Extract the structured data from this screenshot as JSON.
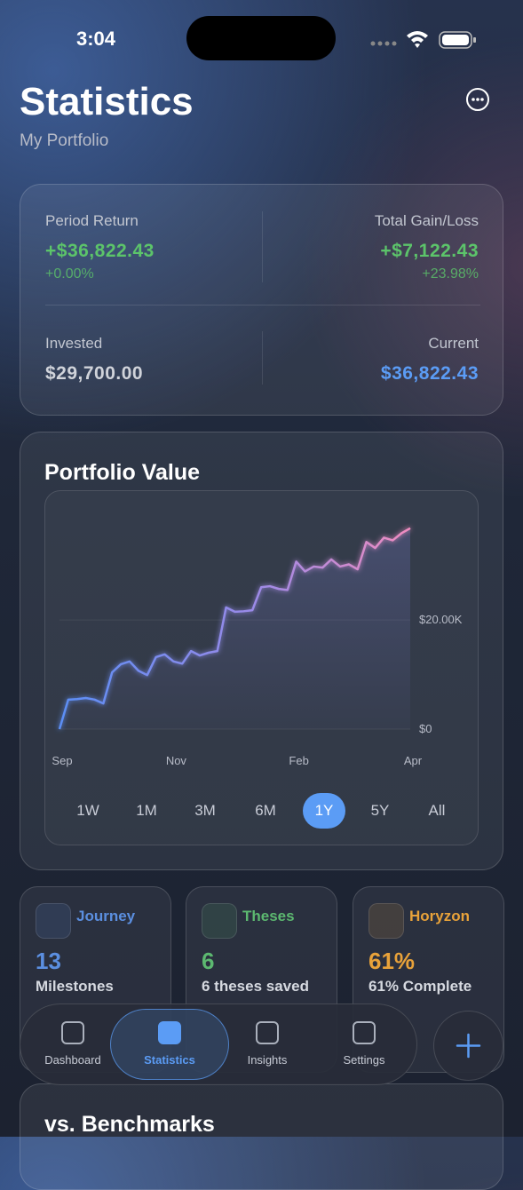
{
  "status_bar": {
    "time": "3:04"
  },
  "header": {
    "title": "Statistics",
    "subtitle": "My Portfolio"
  },
  "summary": {
    "period_return": {
      "label": "Period Return",
      "value": "+$36,822.43",
      "change": "+0.00%"
    },
    "total_gain_loss": {
      "label": "Total Gain/Loss",
      "value": "+$7,122.43",
      "change": "+23.98%"
    },
    "invested": {
      "label": "Invested",
      "value": "$29,700.00"
    },
    "current": {
      "label": "Current",
      "value": "$36,822.43"
    }
  },
  "portfolio_chart": {
    "type": "line",
    "title": "Portfolio Value",
    "x": [
      "Sep",
      null,
      null,
      null,
      null,
      null,
      null,
      null,
      null,
      null,
      null,
      null,
      null,
      "Nov",
      null,
      null,
      null,
      null,
      null,
      null,
      null,
      null,
      null,
      null,
      null,
      null,
      null,
      "Feb",
      null,
      null,
      null,
      null,
      null,
      null,
      null,
      null,
      null,
      null,
      null,
      null,
      "Apr"
    ],
    "values": [
      0,
      5400,
      5500,
      5700,
      5400,
      4700,
      10400,
      11900,
      12400,
      10700,
      9900,
      13200,
      13700,
      12400,
      12000,
      14300,
      13500,
      14000,
      14300,
      22300,
      21500,
      21600,
      21800,
      26000,
      26200,
      25700,
      25500,
      30700,
      28900,
      29800,
      29600,
      31100,
      29800,
      30200,
      29300,
      34300,
      33200,
      35100,
      34600,
      35900,
      36822
    ],
    "ylim": [
      0,
      42000
    ],
    "yticks": [
      {
        "value": 0,
        "label": "$0"
      },
      {
        "value": 20000,
        "label": "$20.00K"
      }
    ],
    "grid": true,
    "ranges": [
      "1W",
      "1M",
      "3M",
      "6M",
      "1Y",
      "5Y",
      "All"
    ],
    "selected_range_index": 4
  },
  "cards": [
    {
      "title": "Journey",
      "value": "13",
      "subtitle": "Milestones",
      "color": "#5b8fe0"
    },
    {
      "title": "Theses",
      "value": "6",
      "subtitle": "6 theses saved",
      "color": "#5cb870"
    },
    {
      "title": "Horyzon",
      "value": "61%",
      "subtitle": "61% Complete",
      "color": "#e8a23a"
    }
  ],
  "tab_bar": {
    "tabs": [
      "Dashboard",
      "Statistics",
      "Insights",
      "Settings"
    ],
    "selected_index": 1
  },
  "next_section": {
    "title": "vs. Benchmarks"
  }
}
